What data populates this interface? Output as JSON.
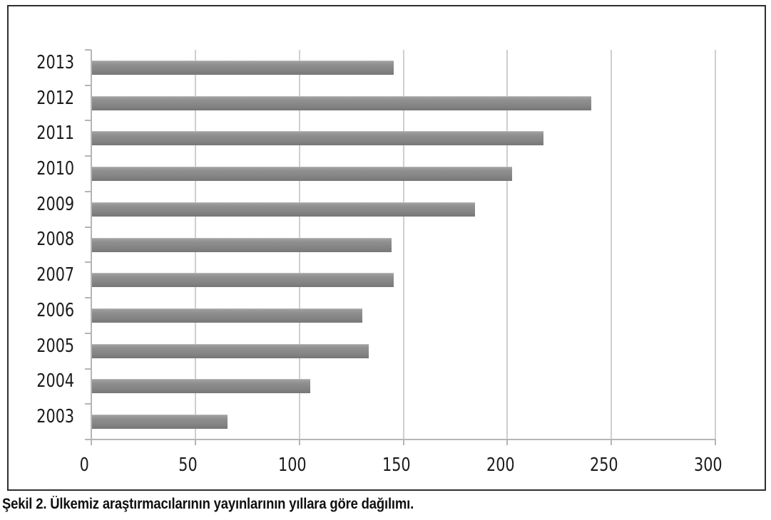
{
  "figure": {
    "caption": "Şekil 2. Ülkemiz araştırmacılarının yayınlarının yıllara göre dağılımı."
  },
  "chart_data": {
    "type": "bar",
    "orientation": "horizontal",
    "title": "",
    "categories": [
      "2013",
      "2012",
      "2011",
      "2010",
      "2009",
      "2008",
      "2007",
      "2006",
      "2005",
      "2004",
      "2003"
    ],
    "values": [
      145,
      240,
      217,
      202,
      184,
      144,
      145,
      130,
      133,
      105,
      65
    ],
    "xlabel": "",
    "ylabel": "",
    "xlim": [
      0,
      300
    ],
    "x_ticks": [
      0,
      50,
      100,
      150,
      200,
      250,
      300
    ],
    "grid": "vertical gridlines at x ticks",
    "legend": "none",
    "colors": {
      "bar": "#8a8a8a",
      "gridline": "#cfcfcf",
      "axis": "#b5b5b5",
      "text": "#1c1c1c",
      "frame_border": "#2e2e2e",
      "background": "#ffffff"
    }
  }
}
